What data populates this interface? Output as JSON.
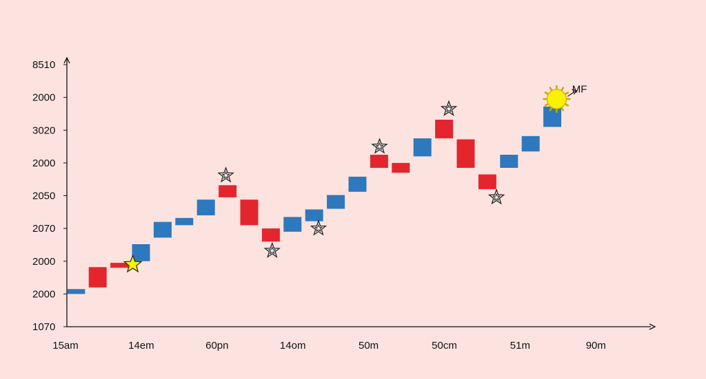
{
  "chart_data": {
    "type": "bar",
    "subtype": "waterfall",
    "title": "",
    "xlabel": "",
    "ylabel": "",
    "y_tick_labels": [
      "8510",
      "2000",
      "3020",
      "2000",
      "2050",
      "2070",
      "2000",
      "2000",
      "1070"
    ],
    "x_tick_labels": [
      "15am",
      "14em",
      "60pn",
      "14om",
      "50m",
      "50cm",
      "51m",
      "90m"
    ],
    "ylim": [
      0,
      8
    ],
    "y_tick_positions": [
      8,
      7,
      6,
      5,
      4,
      3,
      2,
      1,
      0
    ],
    "x_tick_positions": [
      0,
      3.5,
      7,
      10.5,
      14,
      17.5,
      21,
      24.5
    ],
    "xlim": [
      0,
      29.3
    ],
    "grid": false,
    "legend": "none",
    "series": [
      {
        "values": [
          {
            "x": 0.36,
            "start": 1.0,
            "end": 1.15,
            "direction": "up"
          },
          {
            "x": 1.36,
            "start": 1.2,
            "end": 1.82,
            "direction": "down"
          },
          {
            "x": 2.36,
            "start": 1.8,
            "end": 1.95,
            "direction": "down"
          },
          {
            "x": 3.36,
            "start": 2.0,
            "end": 2.52,
            "direction": "up"
          },
          {
            "x": 4.36,
            "start": 2.72,
            "end": 3.2,
            "direction": "up"
          },
          {
            "x": 5.36,
            "start": 3.1,
            "end": 3.32,
            "direction": "up"
          },
          {
            "x": 6.36,
            "start": 3.4,
            "end": 3.88,
            "direction": "up"
          },
          {
            "x": 7.36,
            "start": 3.95,
            "end": 4.32,
            "direction": "down"
          },
          {
            "x": 8.36,
            "start": 3.1,
            "end": 3.88,
            "direction": "down"
          },
          {
            "x": 9.36,
            "start": 2.6,
            "end": 3.0,
            "direction": "down"
          },
          {
            "x": 10.36,
            "start": 2.9,
            "end": 3.35,
            "direction": "up"
          },
          {
            "x": 11.36,
            "start": 3.22,
            "end": 3.58,
            "direction": "up"
          },
          {
            "x": 12.36,
            "start": 3.6,
            "end": 4.02,
            "direction": "up"
          },
          {
            "x": 13.36,
            "start": 4.12,
            "end": 4.58,
            "direction": "up"
          },
          {
            "x": 14.36,
            "start": 4.85,
            "end": 5.25,
            "direction": "down"
          },
          {
            "x": 15.36,
            "start": 4.7,
            "end": 5.0,
            "direction": "down"
          },
          {
            "x": 16.36,
            "start": 5.2,
            "end": 5.75,
            "direction": "up"
          },
          {
            "x": 17.36,
            "start": 5.75,
            "end": 6.32,
            "direction": "down"
          },
          {
            "x": 18.36,
            "start": 4.85,
            "end": 5.72,
            "direction": "down"
          },
          {
            "x": 19.36,
            "start": 4.2,
            "end": 4.65,
            "direction": "down"
          },
          {
            "x": 20.36,
            "start": 4.85,
            "end": 5.25,
            "direction": "up"
          },
          {
            "x": 21.36,
            "start": 5.35,
            "end": 5.82,
            "direction": "up"
          },
          {
            "x": 22.36,
            "start": 6.1,
            "end": 6.72,
            "direction": "up"
          }
        ]
      }
    ],
    "annotations": [
      {
        "kind": "star-filled",
        "x": 2.98,
        "y": 1.9
      },
      {
        "kind": "star-outline",
        "x": 7.28,
        "y": 4.62
      },
      {
        "kind": "star-outline",
        "x": 9.42,
        "y": 2.32
      },
      {
        "kind": "star-outline",
        "x": 11.56,
        "y": 3.0
      },
      {
        "kind": "star-outline",
        "x": 14.38,
        "y": 5.5
      },
      {
        "kind": "star-outline",
        "x": 17.58,
        "y": 6.65
      },
      {
        "kind": "star-outline",
        "x": 19.78,
        "y": 3.95
      },
      {
        "kind": "sun",
        "x": 22.56,
        "y": 6.95
      },
      {
        "kind": "label",
        "x": 23.4,
        "y": 7.25,
        "text": "MF"
      }
    ],
    "colors": {
      "up": "#2e78bd",
      "down": "#e3262d",
      "star_fill": "#f6f400",
      "sun_fill": "#f9f200",
      "background": "#fde3df",
      "axis": "#111111"
    }
  }
}
